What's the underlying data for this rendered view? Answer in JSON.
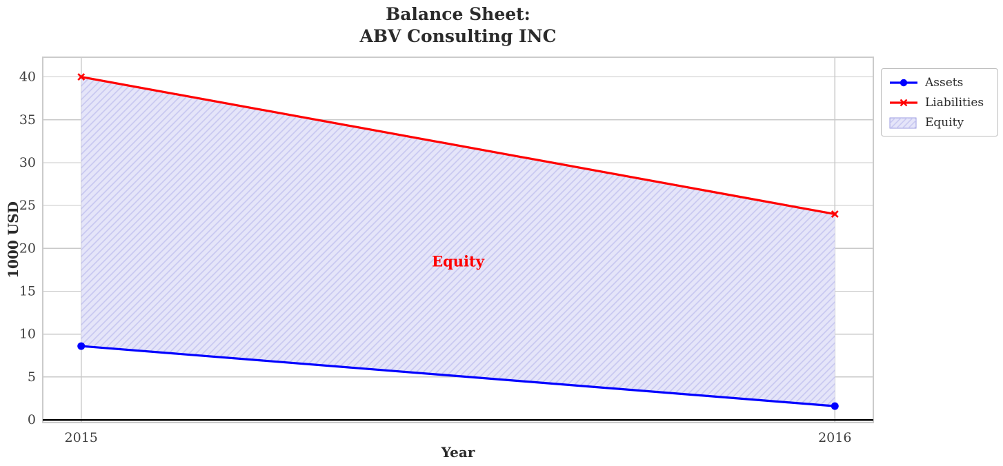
{
  "page": {
    "background": "#ffffff"
  },
  "chart_data": {
    "type": "line",
    "title_lines": [
      "Balance Sheet:",
      "ABV Consulting INC"
    ],
    "xlabel": "Year",
    "ylabel": "1000 USD",
    "x": [
      2015,
      2016
    ],
    "series": [
      {
        "name": "Assets",
        "color": "#0000ff",
        "marker": "circle",
        "values": [
          8.6,
          1.6
        ]
      },
      {
        "name": "Liabilities",
        "color": "#ff0000",
        "marker": "x",
        "values": [
          40,
          24
        ]
      }
    ],
    "fill_between": {
      "label": "Equity",
      "between": [
        "Liabilities",
        "Assets"
      ],
      "fill_color": "#e5e5f9",
      "hatch": "///",
      "hatch_color": "#c6c6f0",
      "edge_color": "#9a9ae0"
    },
    "annotation": {
      "text": "Equity",
      "x": 2015.5,
      "y": 18.5,
      "color": "#ff0000"
    },
    "xticks": [
      2015,
      2016
    ],
    "yticks": [
      0,
      5,
      10,
      15,
      20,
      25,
      30,
      35,
      40
    ],
    "xlim": [
      2014.949,
      2016.051
    ],
    "ylim": [
      -0.32,
      42.3
    ],
    "zero_line": 0,
    "grid": true,
    "legend": {
      "position": "outside-upper-right",
      "labels": [
        "Assets",
        "Liabilities",
        "Equity"
      ]
    },
    "colors": {
      "grid": "#c9c9c9",
      "spine": "#cbcbcb",
      "tick_label": "#3f3f3f",
      "title": "#2b2b2b",
      "zero_line": "#000000"
    }
  }
}
